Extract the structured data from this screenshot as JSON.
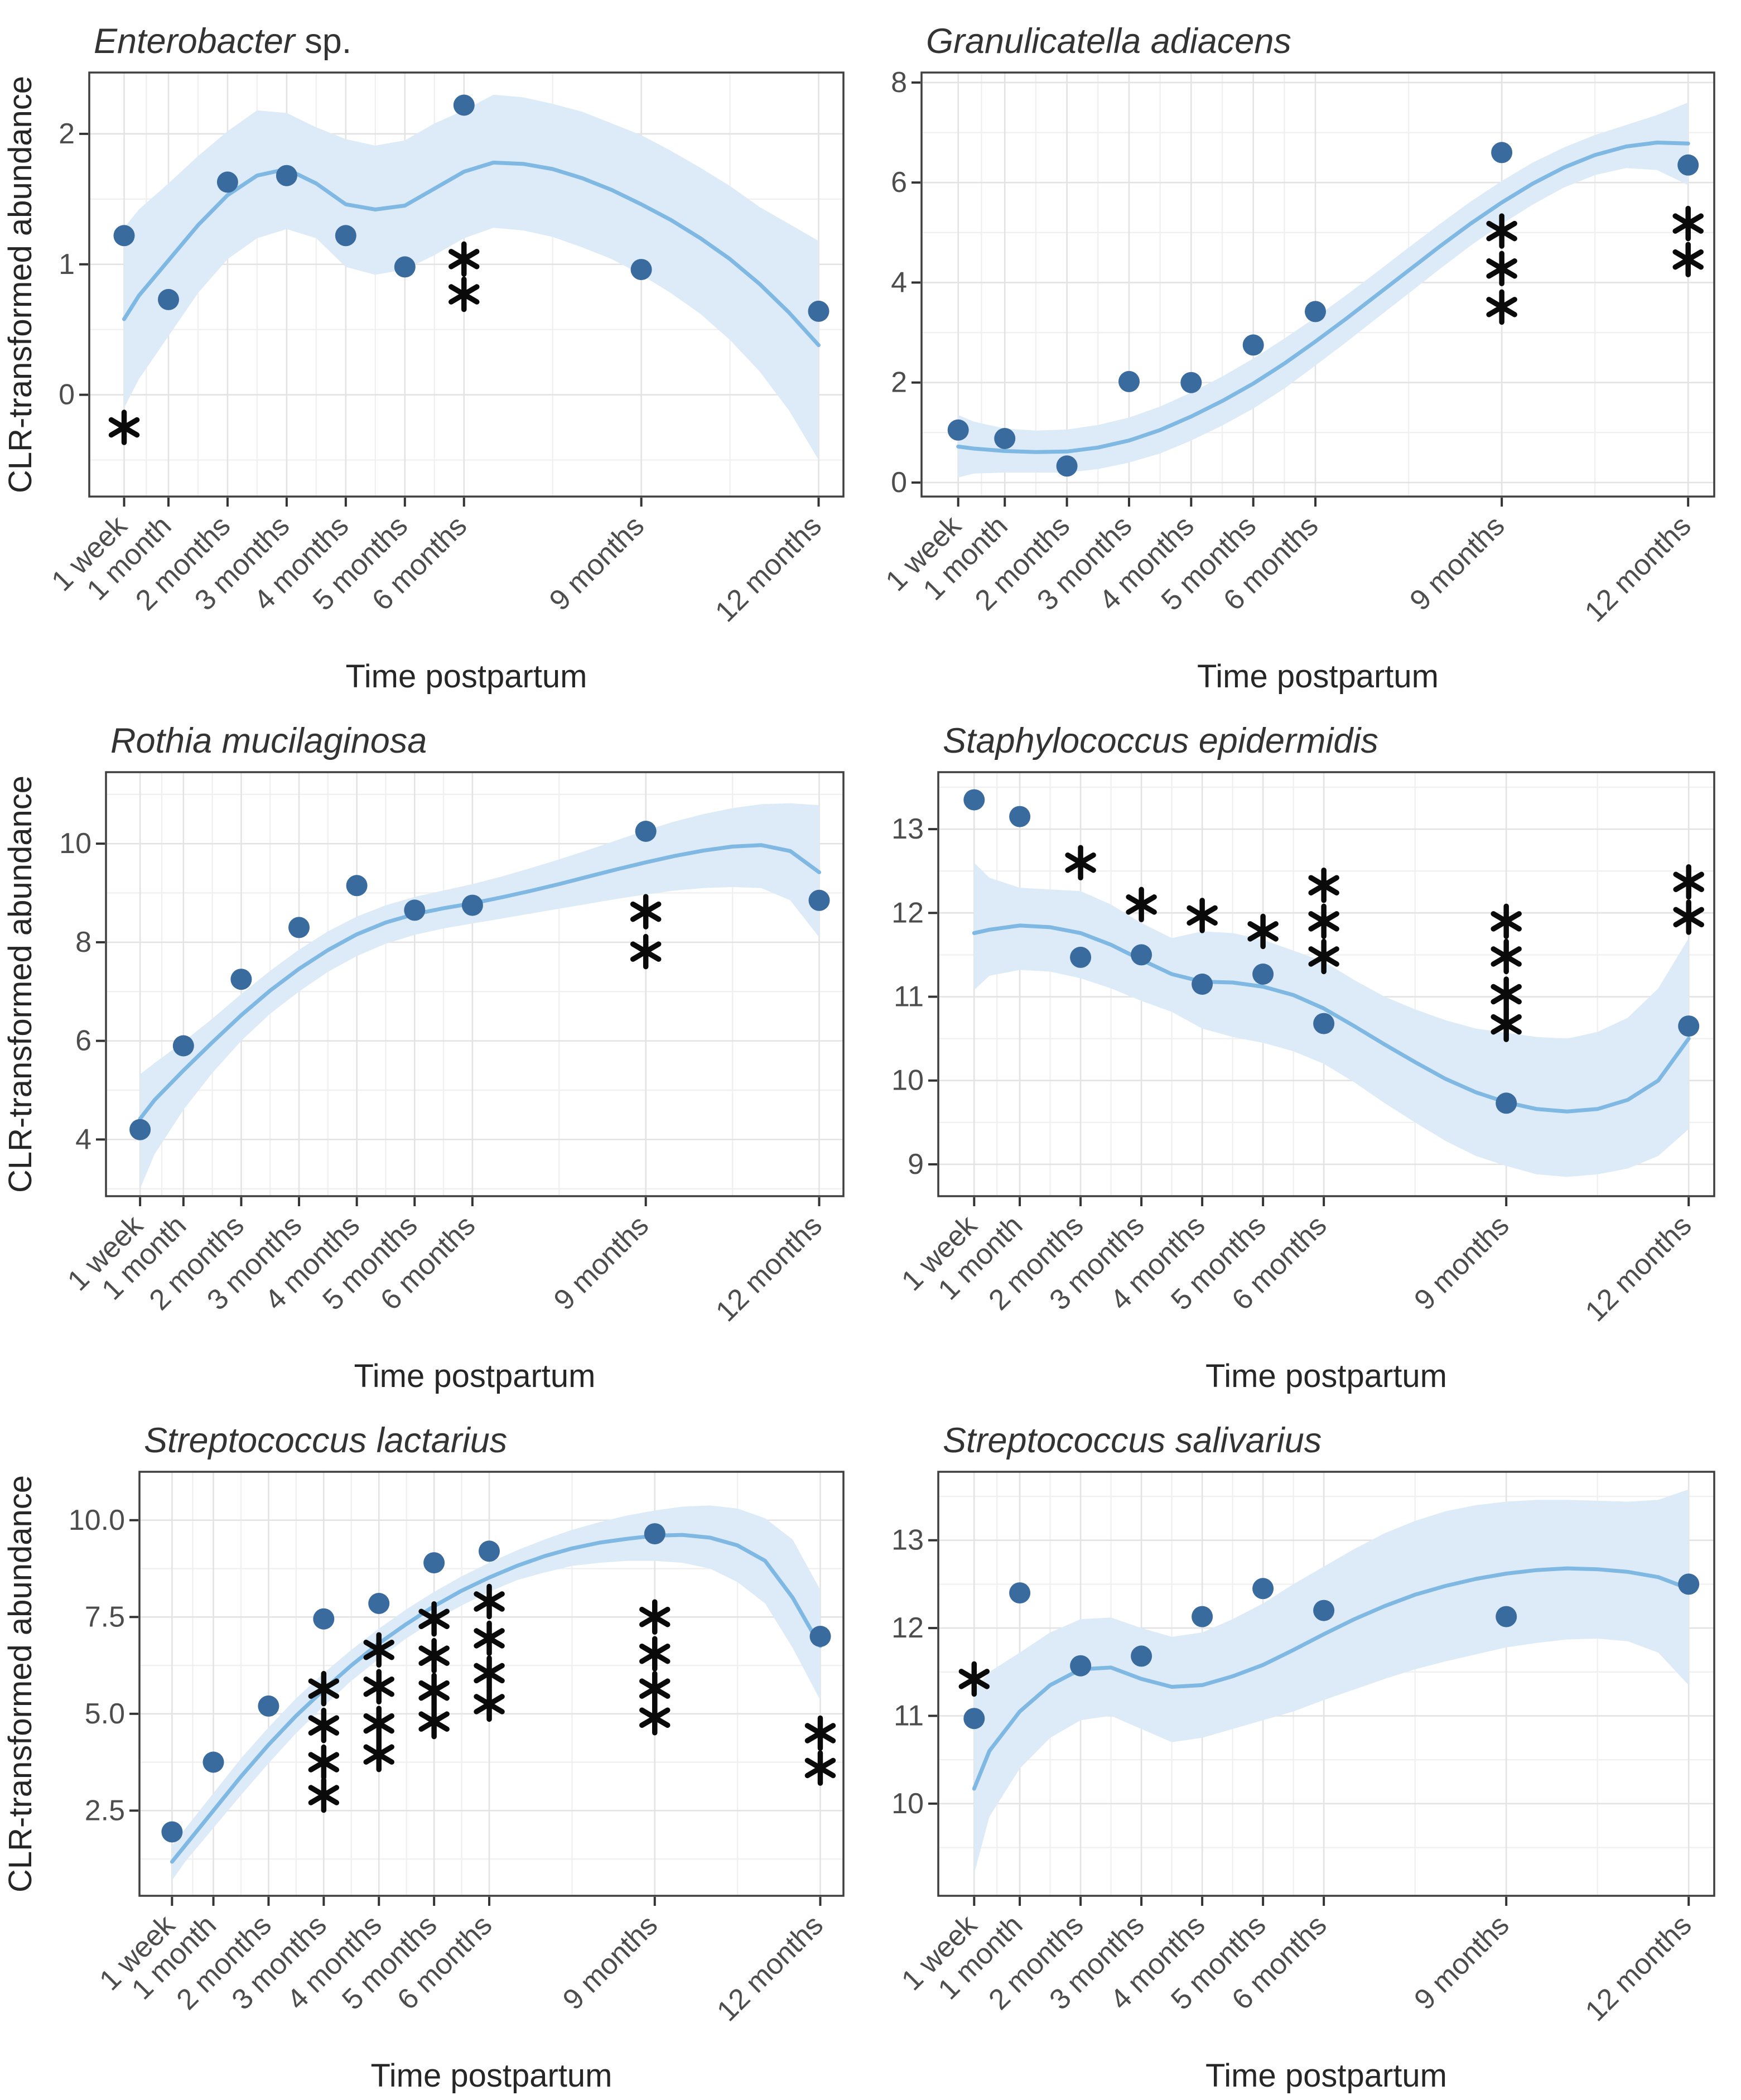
{
  "figure": {
    "x_axis_label": "Time postpartum",
    "y_axis_label": "CLR-transformed abundance",
    "x_ticks": {
      "positions": [
        0.25,
        1,
        2,
        3,
        4,
        5,
        6,
        9,
        12
      ],
      "labels": [
        "1 week",
        "1 month",
        "2 months",
        "3 months",
        "4 months",
        "5 months",
        "6 months",
        "9 months",
        "12 months"
      ]
    },
    "x_minor_positions": [
      0.625,
      1.5,
      2.5,
      3.5,
      4.5,
      5.5,
      7.5,
      10.5
    ],
    "xlim": [
      -0.34,
      12.42
    ],
    "colors": {
      "point": "#3a6b9f",
      "trend_line": "#7fb8e2",
      "band": "#dcebf7",
      "grid_major": "#e3e3e3",
      "grid_minor": "#f0f0f0",
      "panel_border": "#3f3f3f",
      "tick_mark": "#333333",
      "tick_text": "#4d4d4d",
      "axis_title_text": "#262626",
      "panel_title_text": "#333333",
      "asterisk": "#0a0a0a",
      "background": "#ffffff"
    }
  },
  "chart_data": [
    {
      "type": "scatter",
      "title_italic": "Enterobacter",
      "title_regular": " sp.",
      "row": 0,
      "col": 0,
      "show_y_axis_title": true,
      "ylim": [
        -0.78,
        2.47
      ],
      "y_ticks": {
        "values": [
          0,
          1,
          2
        ],
        "labels": [
          "0",
          "1",
          "2"
        ]
      },
      "x": [
        0.25,
        1,
        2,
        3,
        4,
        5,
        6,
        9,
        12
      ],
      "points": [
        1.22,
        0.73,
        1.63,
        1.68,
        1.22,
        0.98,
        2.22,
        0.96,
        0.64
      ],
      "trend_x": [
        0.25,
        0.5,
        1,
        1.5,
        2,
        2.5,
        3,
        3.5,
        4,
        4.5,
        5,
        5.5,
        6,
        6.5,
        7,
        7.5,
        8,
        8.5,
        9,
        9.5,
        10,
        10.5,
        11,
        11.5,
        12
      ],
      "trend_y": [
        0.58,
        0.76,
        1.03,
        1.3,
        1.53,
        1.68,
        1.73,
        1.62,
        1.46,
        1.42,
        1.45,
        1.58,
        1.71,
        1.78,
        1.77,
        1.73,
        1.66,
        1.57,
        1.46,
        1.34,
        1.2,
        1.04,
        0.85,
        0.63,
        0.38
      ],
      "band_upper": [
        1.28,
        1.42,
        1.62,
        1.83,
        2.02,
        2.18,
        2.16,
        2.05,
        1.96,
        1.91,
        1.95,
        2.08,
        2.18,
        2.3,
        2.28,
        2.23,
        2.17,
        2.08,
        1.99,
        1.87,
        1.74,
        1.6,
        1.44,
        1.31,
        1.18
      ],
      "band_lower": [
        -0.1,
        0.12,
        0.45,
        0.78,
        1.04,
        1.2,
        1.27,
        1.2,
        0.98,
        0.92,
        0.96,
        1.07,
        1.2,
        1.28,
        1.26,
        1.21,
        1.13,
        1.04,
        0.92,
        0.78,
        0.62,
        0.42,
        0.18,
        -0.12,
        -0.5
      ],
      "significance": [
        {
          "x": 0.25,
          "y": [
            -0.25
          ]
        },
        {
          "x": 6,
          "y": [
            1.04,
            0.77
          ]
        }
      ]
    },
    {
      "type": "scatter",
      "title_italic": "Granulicatella adiacens",
      "title_regular": "",
      "row": 0,
      "col": 1,
      "show_y_axis_title": false,
      "ylim": [
        -0.28,
        8.2
      ],
      "y_ticks": {
        "values": [
          0,
          2,
          4,
          6,
          8
        ],
        "labels": [
          "0",
          "2",
          "4",
          "6",
          "8"
        ]
      },
      "x": [
        0.25,
        1,
        2,
        3,
        4,
        5,
        6,
        9,
        12
      ],
      "points": [
        1.05,
        0.88,
        0.33,
        2.02,
        2.0,
        2.75,
        3.42,
        6.6,
        6.35
      ],
      "trend_x": [
        0.25,
        0.5,
        1,
        1.5,
        2,
        2.5,
        3,
        3.5,
        4,
        4.5,
        5,
        5.5,
        6,
        6.5,
        7,
        7.5,
        8,
        8.5,
        9,
        9.5,
        10,
        10.5,
        11,
        11.5,
        12
      ],
      "trend_y": [
        0.72,
        0.68,
        0.63,
        0.61,
        0.62,
        0.7,
        0.84,
        1.05,
        1.32,
        1.63,
        1.98,
        2.38,
        2.82,
        3.28,
        3.76,
        4.24,
        4.72,
        5.18,
        5.6,
        5.98,
        6.3,
        6.55,
        6.72,
        6.8,
        6.78
      ],
      "band_upper": [
        1.35,
        1.22,
        1.08,
        1.04,
        1.06,
        1.15,
        1.3,
        1.52,
        1.8,
        2.12,
        2.48,
        2.88,
        3.3,
        3.75,
        4.22,
        4.7,
        5.17,
        5.62,
        6.03,
        6.4,
        6.7,
        6.95,
        7.15,
        7.35,
        7.6
      ],
      "band_lower": [
        0.1,
        0.18,
        0.2,
        0.2,
        0.2,
        0.27,
        0.4,
        0.58,
        0.84,
        1.14,
        1.48,
        1.88,
        2.34,
        2.81,
        3.3,
        3.78,
        4.27,
        4.74,
        5.17,
        5.56,
        5.9,
        6.15,
        6.29,
        6.25,
        5.95
      ],
      "significance": [
        {
          "x": 9,
          "y": [
            5.03,
            4.28,
            3.51
          ]
        },
        {
          "x": 12,
          "y": [
            5.18,
            4.46
          ]
        }
      ]
    },
    {
      "type": "scatter",
      "title_italic": "Rothia mucilaginosa",
      "title_regular": "",
      "row": 1,
      "col": 0,
      "show_y_axis_title": true,
      "ylim": [
        2.85,
        11.45
      ],
      "y_ticks": {
        "values": [
          4,
          6,
          8,
          10
        ],
        "labels": [
          "4",
          "6",
          "8",
          "10"
        ]
      },
      "x": [
        0.25,
        1,
        2,
        3,
        4,
        5,
        6,
        9,
        12
      ],
      "points": [
        4.2,
        5.9,
        7.25,
        8.3,
        9.15,
        8.65,
        8.75,
        10.25,
        8.85
      ],
      "trend_x": [
        0.25,
        0.5,
        1,
        1.5,
        2,
        2.5,
        3,
        3.5,
        4,
        4.5,
        5,
        5.5,
        6,
        6.5,
        7,
        7.5,
        8,
        8.5,
        9,
        9.5,
        10,
        10.5,
        11,
        11.5,
        12
      ],
      "trend_y": [
        4.42,
        4.8,
        5.4,
        5.97,
        6.52,
        7.02,
        7.46,
        7.84,
        8.16,
        8.4,
        8.57,
        8.69,
        8.79,
        8.91,
        9.04,
        9.18,
        9.33,
        9.48,
        9.62,
        9.75,
        9.86,
        9.94,
        9.97,
        9.85,
        9.42
      ],
      "band_upper": [
        5.32,
        5.55,
        5.98,
        6.45,
        6.95,
        7.42,
        7.85,
        8.22,
        8.52,
        8.75,
        8.92,
        9.05,
        9.18,
        9.33,
        9.5,
        9.68,
        9.87,
        10.07,
        10.27,
        10.45,
        10.6,
        10.72,
        10.8,
        10.82,
        10.78
      ],
      "band_lower": [
        3.0,
        3.7,
        4.6,
        5.35,
        6.0,
        6.55,
        7.0,
        7.4,
        7.72,
        7.97,
        8.15,
        8.28,
        8.38,
        8.48,
        8.58,
        8.68,
        8.78,
        8.88,
        8.97,
        9.05,
        9.1,
        9.12,
        9.1,
        8.85,
        8.1
      ],
      "significance": [
        {
          "x": 9,
          "y": [
            8.62,
            7.81
          ]
        }
      ]
    },
    {
      "type": "scatter",
      "title_italic": "Staphylococcus epidermidis",
      "title_regular": "",
      "row": 1,
      "col": 1,
      "show_y_axis_title": false,
      "ylim": [
        8.62,
        13.68
      ],
      "y_ticks": {
        "values": [
          9,
          10,
          11,
          12,
          13
        ],
        "labels": [
          "9",
          "10",
          "11",
          "12",
          "13"
        ]
      },
      "x": [
        0.25,
        1,
        2,
        3,
        4,
        5,
        6,
        9,
        12
      ],
      "points": [
        13.35,
        13.15,
        11.47,
        11.5,
        11.15,
        11.27,
        10.68,
        9.73,
        10.65
      ],
      "trend_x": [
        0.25,
        0.5,
        1,
        1.5,
        2,
        2.5,
        3,
        3.5,
        4,
        4.5,
        5,
        5.5,
        6,
        6.5,
        7,
        7.5,
        8,
        8.5,
        9,
        9.5,
        10,
        10.5,
        11,
        11.5,
        12
      ],
      "trend_y": [
        11.76,
        11.8,
        11.85,
        11.83,
        11.76,
        11.62,
        11.44,
        11.27,
        11.18,
        11.17,
        11.12,
        11.02,
        10.86,
        10.65,
        10.43,
        10.22,
        10.02,
        9.86,
        9.74,
        9.66,
        9.63,
        9.66,
        9.77,
        10.0,
        10.5
      ],
      "band_upper": [
        12.6,
        12.42,
        12.3,
        12.28,
        12.26,
        12.1,
        11.88,
        11.7,
        11.78,
        11.76,
        11.68,
        11.55,
        11.42,
        11.2,
        11.0,
        10.85,
        10.72,
        10.62,
        10.57,
        10.52,
        10.5,
        10.58,
        10.75,
        11.1,
        11.7
      ],
      "band_lower": [
        11.08,
        11.25,
        11.32,
        11.3,
        11.22,
        11.1,
        10.95,
        10.82,
        10.62,
        10.52,
        10.45,
        10.35,
        10.2,
        9.98,
        9.73,
        9.5,
        9.28,
        9.1,
        8.98,
        8.88,
        8.85,
        8.88,
        8.95,
        9.1,
        9.42
      ],
      "significance": [
        {
          "x": 2,
          "y": [
            12.6
          ]
        },
        {
          "x": 3,
          "y": [
            12.1
          ]
        },
        {
          "x": 4,
          "y": [
            11.97
          ]
        },
        {
          "x": 5,
          "y": [
            11.78
          ]
        },
        {
          "x": 6,
          "y": [
            12.33,
            11.9,
            11.48
          ]
        },
        {
          "x": 9,
          "y": [
            11.9,
            11.48,
            11.03,
            10.67
          ]
        },
        {
          "x": 12,
          "y": [
            12.37,
            11.95
          ]
        }
      ]
    },
    {
      "type": "scatter",
      "title_italic": "Streptococcus lactarius",
      "title_regular": "",
      "row": 2,
      "col": 0,
      "show_y_axis_title": true,
      "ylim": [
        0.3,
        11.25
      ],
      "y_ticks": {
        "values": [
          2.5,
          5.0,
          7.5,
          10.0
        ],
        "labels": [
          "2.5",
          "5.0",
          "7.5",
          "10.0"
        ]
      },
      "x": [
        0.25,
        1,
        2,
        3,
        4,
        5,
        6,
        9,
        12
      ],
      "points": [
        1.95,
        3.75,
        5.2,
        7.45,
        7.85,
        8.9,
        9.2,
        9.65,
        7.0
      ],
      "trend_x": [
        0.25,
        0.5,
        1,
        1.5,
        2,
        2.5,
        3,
        3.5,
        4,
        4.5,
        5,
        5.5,
        6,
        6.5,
        7,
        7.5,
        8,
        8.5,
        9,
        9.5,
        10,
        10.5,
        11,
        11.5,
        12
      ],
      "trend_y": [
        1.18,
        1.62,
        2.5,
        3.38,
        4.2,
        4.95,
        5.62,
        6.25,
        6.82,
        7.32,
        7.78,
        8.18,
        8.52,
        8.82,
        9.07,
        9.27,
        9.42,
        9.52,
        9.6,
        9.62,
        9.55,
        9.35,
        8.95,
        8.0,
        6.75
      ],
      "band_upper": [
        1.6,
        2.05,
        2.95,
        3.85,
        4.65,
        5.4,
        6.05,
        6.65,
        7.2,
        7.7,
        8.15,
        8.55,
        8.9,
        9.22,
        9.5,
        9.75,
        9.95,
        10.12,
        10.25,
        10.35,
        10.38,
        10.3,
        10.05,
        9.5,
        8.2
      ],
      "band_lower": [
        0.7,
        1.2,
        2.05,
        2.9,
        3.72,
        4.5,
        5.2,
        5.85,
        6.42,
        6.95,
        7.4,
        7.8,
        8.15,
        8.45,
        8.65,
        8.82,
        8.9,
        8.95,
        8.95,
        8.9,
        8.75,
        8.4,
        7.85,
        6.7,
        5.35
      ],
      "significance": [
        {
          "x": 3,
          "y": [
            5.65,
            4.7,
            3.75,
            2.9
          ]
        },
        {
          "x": 4,
          "y": [
            6.65,
            5.7,
            4.75,
            3.95
          ]
        },
        {
          "x": 5,
          "y": [
            7.45,
            6.5,
            5.6,
            4.8
          ]
        },
        {
          "x": 6,
          "y": [
            7.9,
            6.95,
            6.05,
            5.25
          ]
        },
        {
          "x": 9,
          "y": [
            7.5,
            6.55,
            5.65,
            4.9
          ]
        },
        {
          "x": 12,
          "y": [
            4.5,
            3.6
          ]
        }
      ]
    },
    {
      "type": "scatter",
      "title_italic": "Streptococcus salivarius",
      "title_regular": "",
      "row": 2,
      "col": 1,
      "show_y_axis_title": false,
      "ylim": [
        8.95,
        13.78
      ],
      "y_ticks": {
        "values": [
          10,
          11,
          12,
          13
        ],
        "labels": [
          "10",
          "11",
          "12",
          "13"
        ]
      },
      "x": [
        0.25,
        1,
        2,
        3,
        4,
        5,
        6,
        9,
        12
      ],
      "points": [
        10.97,
        12.4,
        11.57,
        11.68,
        12.13,
        12.45,
        12.2,
        12.13,
        12.5
      ],
      "trend_x": [
        0.25,
        0.5,
        1,
        1.5,
        2,
        2.5,
        3,
        3.5,
        4,
        4.5,
        5,
        5.5,
        6,
        6.5,
        7,
        7.5,
        8,
        8.5,
        9,
        9.5,
        10,
        10.5,
        11,
        11.5,
        12
      ],
      "trend_y": [
        10.17,
        10.6,
        11.05,
        11.35,
        11.53,
        11.55,
        11.42,
        11.33,
        11.35,
        11.45,
        11.58,
        11.75,
        11.93,
        12.1,
        12.25,
        12.38,
        12.48,
        12.56,
        12.62,
        12.66,
        12.68,
        12.67,
        12.64,
        12.58,
        12.45
      ],
      "band_upper": [
        11.3,
        11.5,
        11.72,
        11.95,
        12.1,
        12.12,
        12.0,
        11.9,
        11.95,
        12.1,
        12.28,
        12.5,
        12.7,
        12.9,
        13.08,
        13.22,
        13.33,
        13.4,
        13.44,
        13.46,
        13.46,
        13.45,
        13.44,
        13.46,
        13.58
      ],
      "band_lower": [
        9.2,
        9.85,
        10.4,
        10.75,
        10.95,
        11.0,
        10.85,
        10.7,
        10.75,
        10.85,
        10.95,
        11.05,
        11.18,
        11.3,
        11.42,
        11.53,
        11.62,
        11.7,
        11.78,
        11.83,
        11.87,
        11.88,
        11.85,
        11.72,
        11.35
      ],
      "significance": [
        {
          "x": 0.25,
          "y": [
            11.42
          ]
        }
      ]
    }
  ]
}
